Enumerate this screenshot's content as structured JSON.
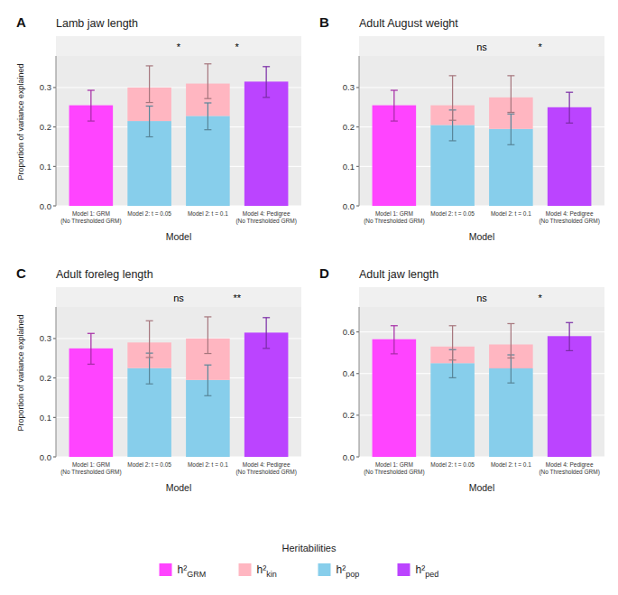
{
  "chart_data": [
    {
      "type": "bar",
      "stacked": true,
      "title": "Lamb jaw length",
      "panel_label": "A",
      "categories": [
        "Model 1: GRM\n(No Thresholded GRM)",
        "Model 2: t = 0.05",
        "Model 2: t = 0.1",
        "Model 4: Pedigree\n(No Thresholded GRM)"
      ],
      "x_label": "Model",
      "y_label": "Proportion of variance explained",
      "ylim": [
        0.0,
        0.38
      ],
      "yticks": [
        {
          "value": 0.0,
          "label": "0.0"
        },
        {
          "value": 0.1,
          "label": "0.1"
        },
        {
          "value": 0.2,
          "label": "0.2"
        },
        {
          "value": 0.3,
          "label": "0.3"
        }
      ],
      "grid": true,
      "legend": "bottom",
      "legend_title": "Heritabilities",
      "annotations": [
        {
          "text": "*",
          "x": 1.5
        },
        {
          "text": "*",
          "x": 2.5
        }
      ],
      "series": [
        {
          "name": "h²GRM",
          "color": "#FF44FF",
          "values": [
            0.255,
            null,
            null,
            null
          ],
          "error_low": [
            0.04,
            null,
            null,
            null
          ],
          "error_high": [
            0.038,
            null,
            null,
            null
          ]
        },
        {
          "name": "h²kin",
          "color": "#FFB6C1",
          "values": [
            null,
            0.085,
            0.082,
            null
          ],
          "error_low": [
            null,
            0.038,
            0.038,
            null
          ],
          "error_high": [
            null,
            0.055,
            0.05,
            null
          ]
        },
        {
          "name": "h²pop",
          "color": "#87CEEB",
          "values": [
            null,
            0.215,
            0.228,
            null
          ],
          "error_low": [
            null,
            0.04,
            0.035,
            null
          ],
          "error_high": [
            null,
            0.038,
            0.033,
            null
          ]
        },
        {
          "name": "h²ped",
          "color": "#BB44FF",
          "values": [
            null,
            null,
            null,
            0.315
          ],
          "error_low": [
            null,
            null,
            null,
            0.04
          ],
          "error_high": [
            null,
            null,
            null,
            0.038
          ]
        }
      ]
    },
    {
      "type": "bar",
      "stacked": true,
      "title": "Adult August weight",
      "panel_label": "B",
      "categories": [
        "Model 1: GRM\n(No Thresholded GRM)",
        "Model 2: t = 0.05",
        "Model 2: t = 0.1",
        "Model 4: Pedigree\n(No Thresholded GRM)"
      ],
      "x_label": "Model",
      "ylim": [
        0.0,
        0.38
      ],
      "yticks": [
        {
          "value": 0.0,
          "label": "0.0"
        },
        {
          "value": 0.1,
          "label": "0.1"
        },
        {
          "value": 0.2,
          "label": "0.2"
        },
        {
          "value": 0.3,
          "label": "0.3"
        }
      ],
      "grid": true,
      "annotations": [
        {
          "text": "ns",
          "x": 1.5
        },
        {
          "text": "*",
          "x": 2.5
        }
      ],
      "series": [
        {
          "color": "#FF44FF",
          "values": [
            0.255,
            null,
            null,
            null
          ],
          "error_low": [
            0.04,
            null,
            null,
            null
          ],
          "error_high": [
            0.038,
            null,
            null,
            null
          ]
        },
        {
          "color": "#FFB6C1",
          "values": [
            null,
            0.05,
            0.08,
            null
          ],
          "error_low": [
            null,
            0.038,
            0.038,
            null
          ],
          "error_high": [
            null,
            0.075,
            0.055,
            null
          ]
        },
        {
          "color": "#87CEEB",
          "values": [
            null,
            0.205,
            0.195,
            null
          ],
          "error_low": [
            null,
            0.04,
            0.04,
            null
          ],
          "error_high": [
            null,
            0.038,
            0.038,
            null
          ]
        },
        {
          "color": "#BB44FF",
          "values": [
            null,
            null,
            null,
            0.25
          ],
          "error_low": [
            null,
            null,
            null,
            0.04
          ],
          "error_high": [
            null,
            null,
            null,
            0.038
          ]
        }
      ]
    },
    {
      "type": "bar",
      "stacked": true,
      "title": "Adult foreleg length",
      "panel_label": "C",
      "categories": [
        "Model 1: GRM\n(No Thresholded GRM)",
        "Model 2: t = 0.05",
        "Model 2: t = 0.1",
        "Model 4: Pedigree\n(No Thresholded GRM)"
      ],
      "x_label": "Model",
      "y_label": "Proportion of variance explained",
      "ylim": [
        0.0,
        0.38
      ],
      "yticks": [
        {
          "value": 0.0,
          "label": "0.0"
        },
        {
          "value": 0.1,
          "label": "0.1"
        },
        {
          "value": 0.2,
          "label": "0.2"
        },
        {
          "value": 0.3,
          "label": "0.3"
        }
      ],
      "grid": true,
      "annotations": [
        {
          "text": "ns",
          "x": 1.5
        },
        {
          "text": "**",
          "x": 2.5
        }
      ],
      "series": [
        {
          "color": "#FF44FF",
          "values": [
            0.275,
            null,
            null,
            null
          ],
          "error_low": [
            0.04,
            null,
            null,
            null
          ],
          "error_high": [
            0.038,
            null,
            null,
            null
          ]
        },
        {
          "color": "#FFB6C1",
          "values": [
            null,
            0.065,
            0.105,
            null
          ],
          "error_low": [
            null,
            0.038,
            0.038,
            null
          ],
          "error_high": [
            null,
            0.055,
            0.055,
            null
          ]
        },
        {
          "color": "#87CEEB",
          "values": [
            null,
            0.225,
            0.195,
            null
          ],
          "error_low": [
            null,
            0.04,
            0.04,
            null
          ],
          "error_high": [
            null,
            0.038,
            0.038,
            null
          ]
        },
        {
          "color": "#BB44FF",
          "values": [
            null,
            null,
            null,
            0.315
          ],
          "error_low": [
            null,
            null,
            null,
            0.04
          ],
          "error_high": [
            null,
            null,
            null,
            0.038
          ]
        }
      ]
    },
    {
      "type": "bar",
      "stacked": true,
      "title": "Adult jaw length",
      "panel_label": "D",
      "categories": [
        "Model 1: GRM\n(No Thresholded GRM)",
        "Model 2: t = 0.05",
        "Model 2: t = 0.1",
        "Model 4: Pedigree\n(No Thresholded GRM)"
      ],
      "x_label": "Model",
      "ylim": [
        0.0,
        0.72
      ],
      "yticks": [
        {
          "value": 0.0,
          "label": "0.0"
        },
        {
          "value": 0.2,
          "label": "0.2"
        },
        {
          "value": 0.4,
          "label": "0.4"
        },
        {
          "value": 0.6,
          "label": "0.6"
        }
      ],
      "grid": true,
      "annotations": [
        {
          "text": "ns",
          "x": 1.5
        },
        {
          "text": "*",
          "x": 2.5
        }
      ],
      "series": [
        {
          "color": "#FF44FF",
          "values": [
            0.565,
            null,
            null,
            null
          ],
          "error_low": [
            0.07,
            null,
            null,
            null
          ],
          "error_high": [
            0.065,
            null,
            null,
            null
          ]
        },
        {
          "color": "#FFB6C1",
          "values": [
            null,
            0.08,
            0.115,
            null
          ],
          "error_low": [
            null,
            0.065,
            0.065,
            null
          ],
          "error_high": [
            null,
            0.1,
            0.1,
            null
          ]
        },
        {
          "color": "#87CEEB",
          "values": [
            null,
            0.45,
            0.425,
            null
          ],
          "error_low": [
            null,
            0.07,
            0.07,
            null
          ],
          "error_high": [
            null,
            0.065,
            0.065,
            null
          ]
        },
        {
          "color": "#BB44FF",
          "values": [
            null,
            null,
            null,
            0.58
          ],
          "error_low": [
            null,
            null,
            null,
            0.07
          ],
          "error_high": [
            null,
            null,
            null,
            0.065
          ]
        }
      ]
    }
  ]
}
